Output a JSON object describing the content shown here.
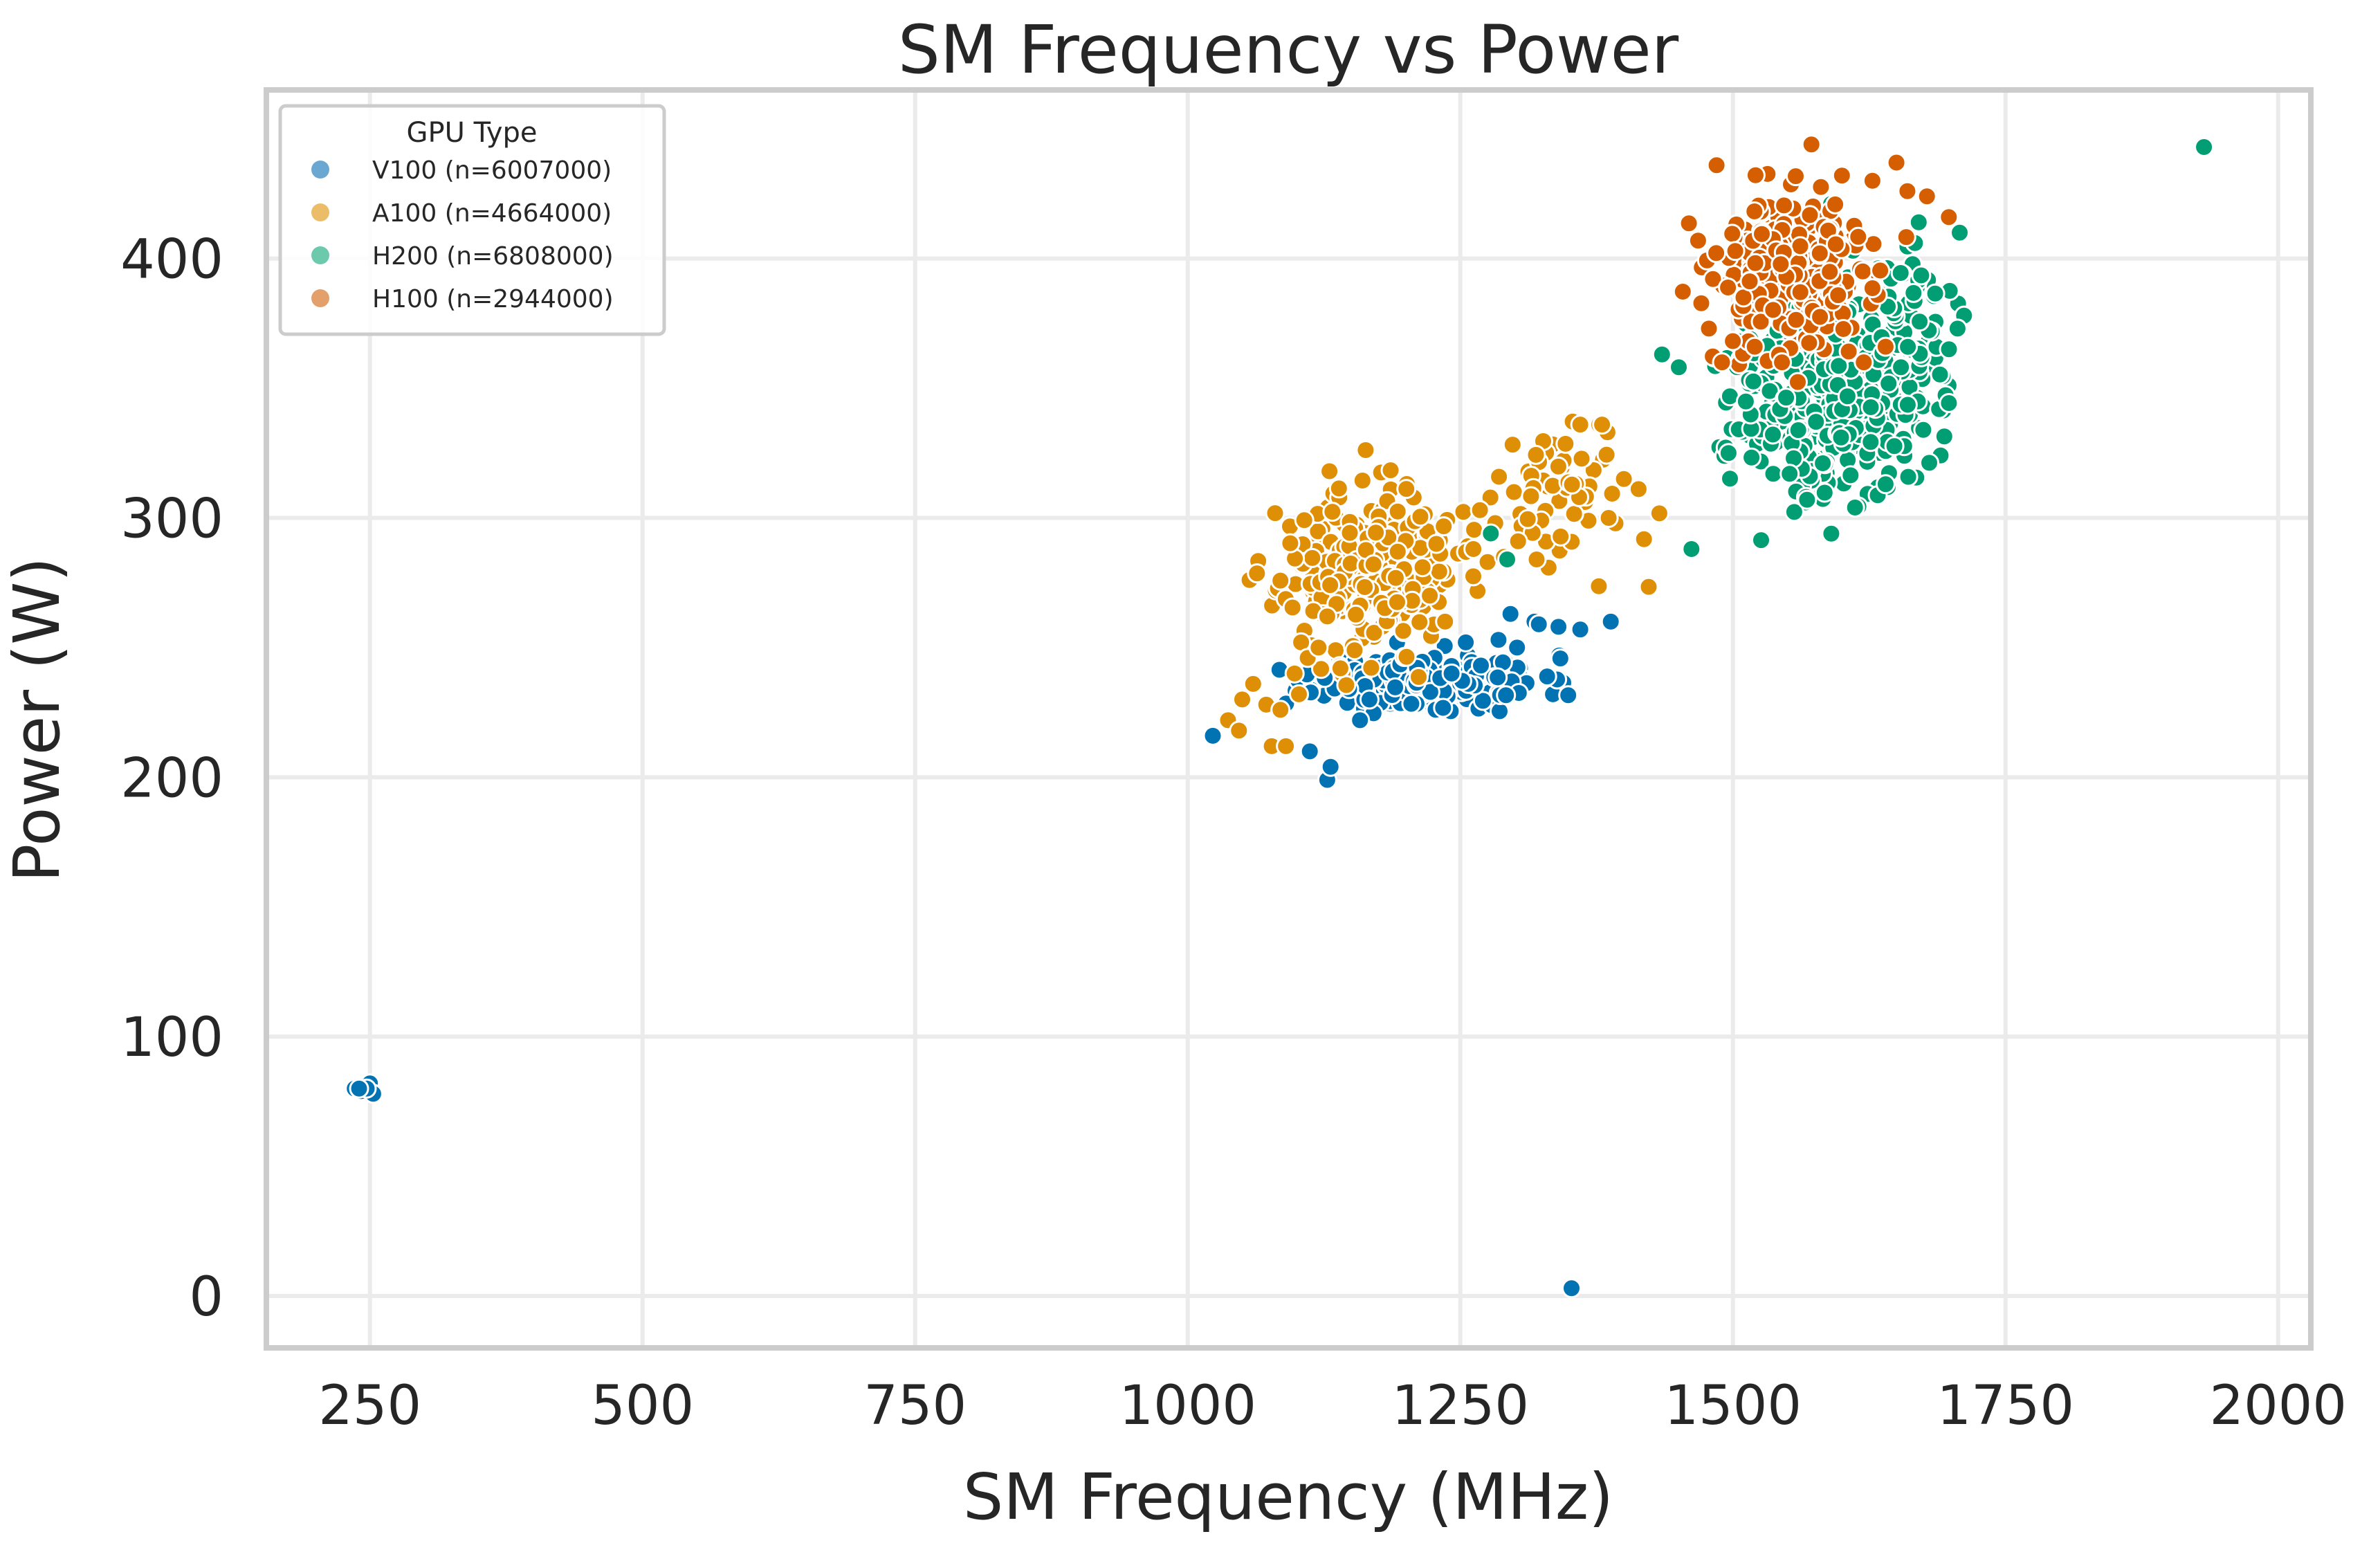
{
  "chart_data": {
    "type": "scatter",
    "title": "SM Frequency vs Power",
    "xlabel": "SM Frequency (MHz)",
    "ylabel": "Power (W)",
    "xlim": [
      155,
      2030
    ],
    "ylim": [
      -20,
      465
    ],
    "xticks": [
      250,
      500,
      750,
      1000,
      1250,
      1500,
      1750,
      2000
    ],
    "yticks": [
      0,
      100,
      200,
      300,
      400
    ],
    "grid": true,
    "legend": {
      "title": "GPU Type",
      "position": "top-left"
    },
    "series": [
      {
        "name": "V100",
        "label": "V100 (n=6007000)",
        "color": "#0173b2",
        "legend_color": "#6aa8d1",
        "clusters": [
          {
            "cx": 1225,
            "cy": 237,
            "sx": 50,
            "sy": 5,
            "n": 260,
            "seed": 11
          }
        ],
        "points": [
          [
            236,
            80
          ],
          [
            242,
            79
          ],
          [
            250,
            82
          ],
          [
            253,
            78
          ],
          [
            247,
            80
          ],
          [
            240,
            80
          ],
          [
            1023,
            216
          ],
          [
            1112,
            210
          ],
          [
            1128,
            199
          ],
          [
            1131,
            204
          ],
          [
            1148,
            234
          ],
          [
            1158,
            222
          ],
          [
            1192,
            252
          ],
          [
            1198,
            256
          ],
          [
            1242,
            240
          ],
          [
            1255,
            252
          ],
          [
            1285,
            253
          ],
          [
            1296,
            263
          ],
          [
            1302,
            250
          ],
          [
            1318,
            260
          ],
          [
            1322,
            259
          ],
          [
            1340,
            258
          ],
          [
            1360,
            257
          ],
          [
            1388,
            260
          ],
          [
            1352,
            3
          ]
        ]
      },
      {
        "name": "A100",
        "label": "A100 (n=4664000)",
        "color": "#de8f05",
        "legend_color": "#ecbd68",
        "clusters": [
          {
            "cx": 1165,
            "cy": 280,
            "sx": 40,
            "sy": 15,
            "n": 280,
            "seed": 23
          },
          {
            "cx": 1340,
            "cy": 310,
            "sx": 35,
            "sy": 14,
            "n": 60,
            "seed": 29
          }
        ],
        "points": [
          [
            1037,
            222
          ],
          [
            1047,
            218
          ],
          [
            1050,
            230
          ],
          [
            1060,
            236
          ],
          [
            1072,
            228
          ],
          [
            1077,
            212
          ],
          [
            1085,
            226
          ],
          [
            1090,
            212
          ],
          [
            1098,
            240
          ],
          [
            1102,
            232
          ],
          [
            1104,
            252
          ],
          [
            1110,
            246
          ],
          [
            1120,
            250
          ],
          [
            1128,
            262
          ],
          [
            1130,
            318
          ],
          [
            1140,
            242
          ],
          [
            1222,
            270
          ],
          [
            1228,
            290
          ],
          [
            1236,
            260
          ],
          [
            1262,
            288
          ],
          [
            1268,
            303
          ],
          [
            1275,
            283
          ],
          [
            1282,
            298
          ],
          [
            1290,
            285
          ],
          [
            1303,
            291
          ],
          [
            1320,
            284
          ],
          [
            1360,
            336
          ],
          [
            1380,
            336
          ],
          [
            1386,
            300
          ],
          [
            1400,
            315
          ]
        ]
      },
      {
        "name": "H200",
        "label": "H200 (n=6808000)",
        "color": "#029e73",
        "legend_color": "#6cc9ab",
        "clusters": [
          {
            "cx": 1590,
            "cy": 350,
            "sx": 45,
            "sy": 20,
            "n": 400,
            "seed": 37
          },
          {
            "cx": 1670,
            "cy": 380,
            "sx": 22,
            "sy": 14,
            "n": 45,
            "seed": 41
          }
        ],
        "points": [
          [
            1932,
            443
          ],
          [
            1435,
            363
          ],
          [
            1462,
            288
          ],
          [
            1278,
            294
          ],
          [
            1293,
            284
          ],
          [
            1612,
            304
          ],
          [
            1568,
            307
          ],
          [
            1537,
            317
          ],
          [
            1552,
            317
          ],
          [
            1590,
            421
          ],
          [
            1610,
            403
          ],
          [
            1667,
            406
          ],
          [
            1708,
            410
          ],
          [
            1712,
            378
          ],
          [
            1706,
            373
          ],
          [
            1496,
            325
          ],
          [
            1640,
            313
          ]
        ]
      },
      {
        "name": "H100",
        "label": "H100 (n=2944000)",
        "color": "#d55e00",
        "legend_color": "#e3a06b",
        "clusters": [
          {
            "cx": 1555,
            "cy": 395,
            "sx": 38,
            "sy": 15,
            "n": 280,
            "seed": 53
          }
        ],
        "points": [
          [
            1485,
            436
          ],
          [
            1572,
            444
          ],
          [
            1600,
            432
          ],
          [
            1628,
            430
          ],
          [
            1650,
            437
          ],
          [
            1660,
            426
          ],
          [
            1678,
            424
          ],
          [
            1698,
            416
          ],
          [
            1478,
            373
          ],
          [
            1490,
            360
          ],
          [
            1520,
            366
          ],
          [
            1545,
            360
          ],
          [
            1620,
            360
          ],
          [
            1640,
            366
          ]
        ]
      }
    ]
  }
}
